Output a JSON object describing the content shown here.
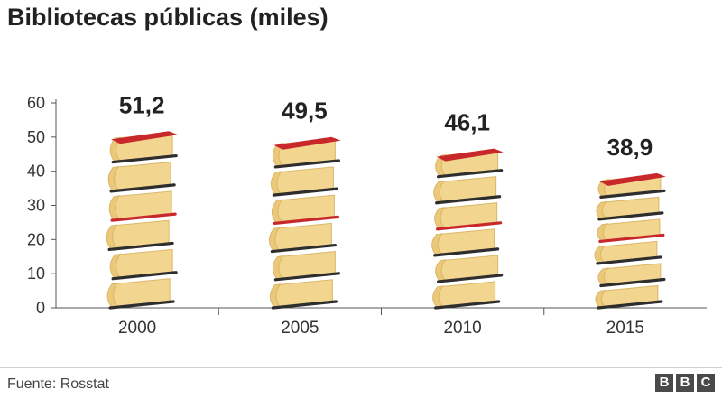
{
  "title": "Bibliotecas públicas (miles)",
  "source": "Fuente: Rosstat",
  "brand": [
    "B",
    "B",
    "C"
  ],
  "colors": {
    "page": "#ffffff",
    "book_cover": "#2e2e2e",
    "book_cover_red": "#c8282a",
    "book_pages": "#f2d58f",
    "book_pages_shade": "#d9b868",
    "book_edge": "#ecc87a"
  },
  "chart_data": {
    "type": "bar",
    "categories": [
      "2000",
      "2005",
      "2010",
      "2015"
    ],
    "values": [
      51.2,
      49.5,
      46.1,
      38.9
    ],
    "value_labels": [
      "51,2",
      "49,5",
      "46,1",
      "38,9"
    ],
    "title": "Bibliotecas públicas (miles)",
    "xlabel": "",
    "ylabel": "",
    "ylim": [
      0,
      60
    ],
    "yticks": [
      0,
      10,
      20,
      30,
      40,
      50,
      60
    ],
    "grid": false,
    "legend": "none",
    "mark_style": "stacked-books"
  }
}
